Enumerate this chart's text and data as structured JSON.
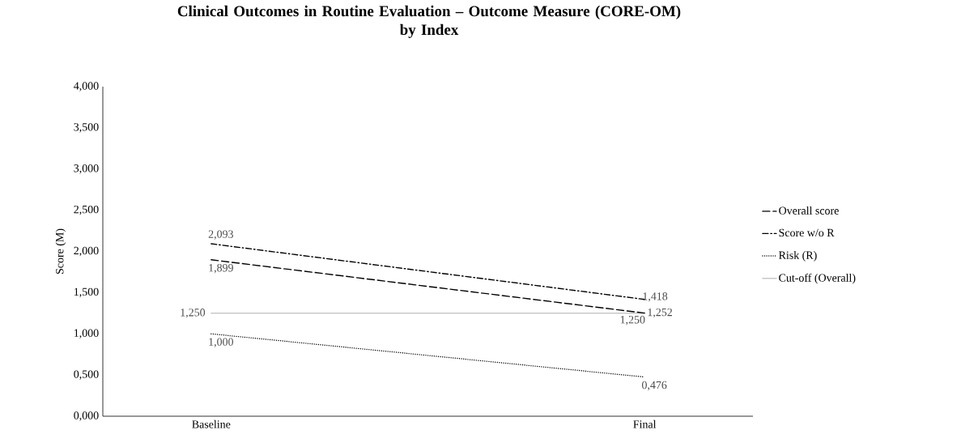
{
  "chart_data": {
    "type": "line",
    "title": "Clinical Outcomes in Routine Evaluation – Outcome Measure (CORE-OM)",
    "subtitle": "by Index",
    "ylabel": "Score (M)",
    "categories": [
      "Baseline",
      "Final"
    ],
    "ylim": [
      0,
      4
    ],
    "yticks": [
      {
        "value": 0,
        "label": "0,000"
      },
      {
        "value": 0.5,
        "label": "0,500"
      },
      {
        "value": 1,
        "label": "1,000"
      },
      {
        "value": 1.5,
        "label": "1,500"
      },
      {
        "value": 2,
        "label": "2,000"
      },
      {
        "value": 2.5,
        "label": "2,500"
      },
      {
        "value": 3,
        "label": "3,000"
      },
      {
        "value": 3.5,
        "label": "3,500"
      },
      {
        "value": 4,
        "label": "4,000"
      }
    ],
    "series": [
      {
        "name": "Overall score",
        "color": "#000000",
        "line_style": "dashed",
        "values": [
          1.899,
          1.252
        ],
        "value_labels": [
          "1,899",
          "1,252"
        ]
      },
      {
        "name": "Score w/o R",
        "color": "#000000",
        "line_style": "dashdot",
        "values": [
          2.093,
          1.418
        ],
        "value_labels": [
          "2,093",
          "1,418"
        ]
      },
      {
        "name": "Risk (R)",
        "color": "#000000",
        "line_style": "dotted",
        "values": [
          1.0,
          0.476
        ],
        "value_labels": [
          "1,000",
          "0,476"
        ]
      },
      {
        "name": "Cut-off (Overall)",
        "color": "#c8c8c8",
        "line_style": "solid",
        "values": [
          1.25,
          1.25
        ],
        "value_labels": [
          "1,250",
          "1,250"
        ]
      }
    ],
    "legend": "right",
    "grid": false,
    "marker": "none"
  }
}
